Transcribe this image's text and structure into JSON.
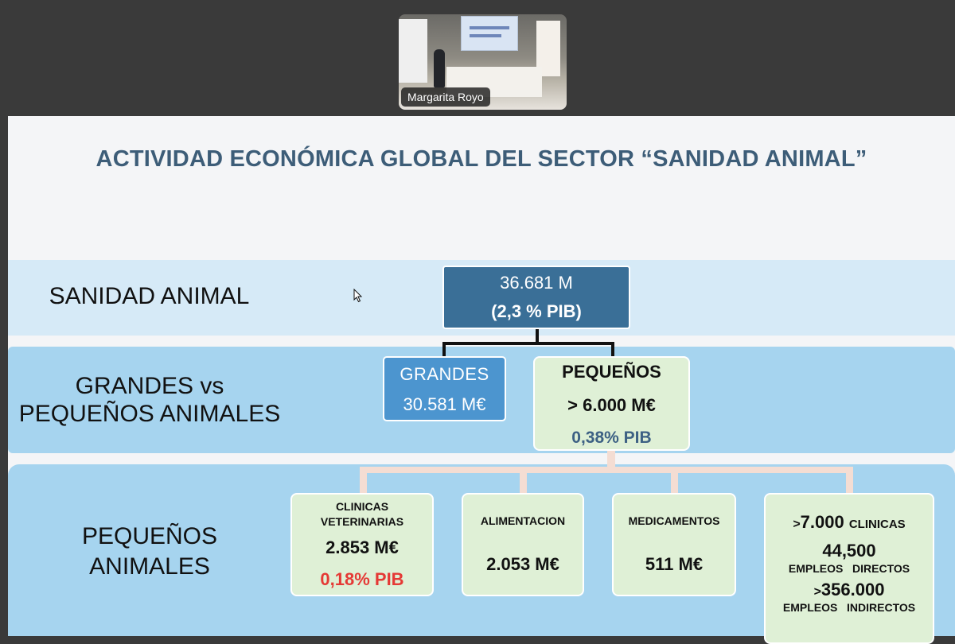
{
  "meeting": {
    "participant_name": "Margarita Royo"
  },
  "slide": {
    "title": "ACTIVIDAD ECONÓMICA GLOBAL DEL SECTOR “SANIDAD ANIMAL”",
    "rows": {
      "row1_label": "SANIDAD ANIMAL",
      "row2_label_line1": "GRANDES vs",
      "row2_label_line2": "PEQUEÑOS ANIMALES",
      "row3_label_line1": "PEQUEÑOS",
      "row3_label_line2": "ANIMALES"
    },
    "root": {
      "value": "36.681 M",
      "pib": "(2,3 % PIB)"
    },
    "grandes": {
      "label": "GRANDES",
      "value": "30.581 M€"
    },
    "pequenos": {
      "label": "PEQUEÑOS",
      "value": "> 6.000 M€",
      "pib": "0,38% PIB"
    },
    "cards": {
      "clinicas": {
        "line1": "CLINICAS",
        "line2": "VETERINARIAS",
        "value": "2.853 M€",
        "pib": "0,18% PIB",
        "pib_color": "#e53935"
      },
      "alimentacion": {
        "label": "ALIMENTACION",
        "value": "2.053 M€"
      },
      "medicamentos": {
        "label": "MEDICAMENTOS",
        "value": "511 M€"
      },
      "stats": {
        "clinics_prefix": ">",
        "clinics_number": "7.000",
        "clinics_label": "CLINICAS",
        "direct_number": "44,500",
        "direct_label_a": "EMPLEOS",
        "direct_label_b": "DIRECTOS",
        "indirect_prefix": ">",
        "indirect_number": "356.000",
        "indirect_label_a": "EMPLEOS",
        "indirect_label_b": "INDIRECTOS"
      }
    }
  }
}
